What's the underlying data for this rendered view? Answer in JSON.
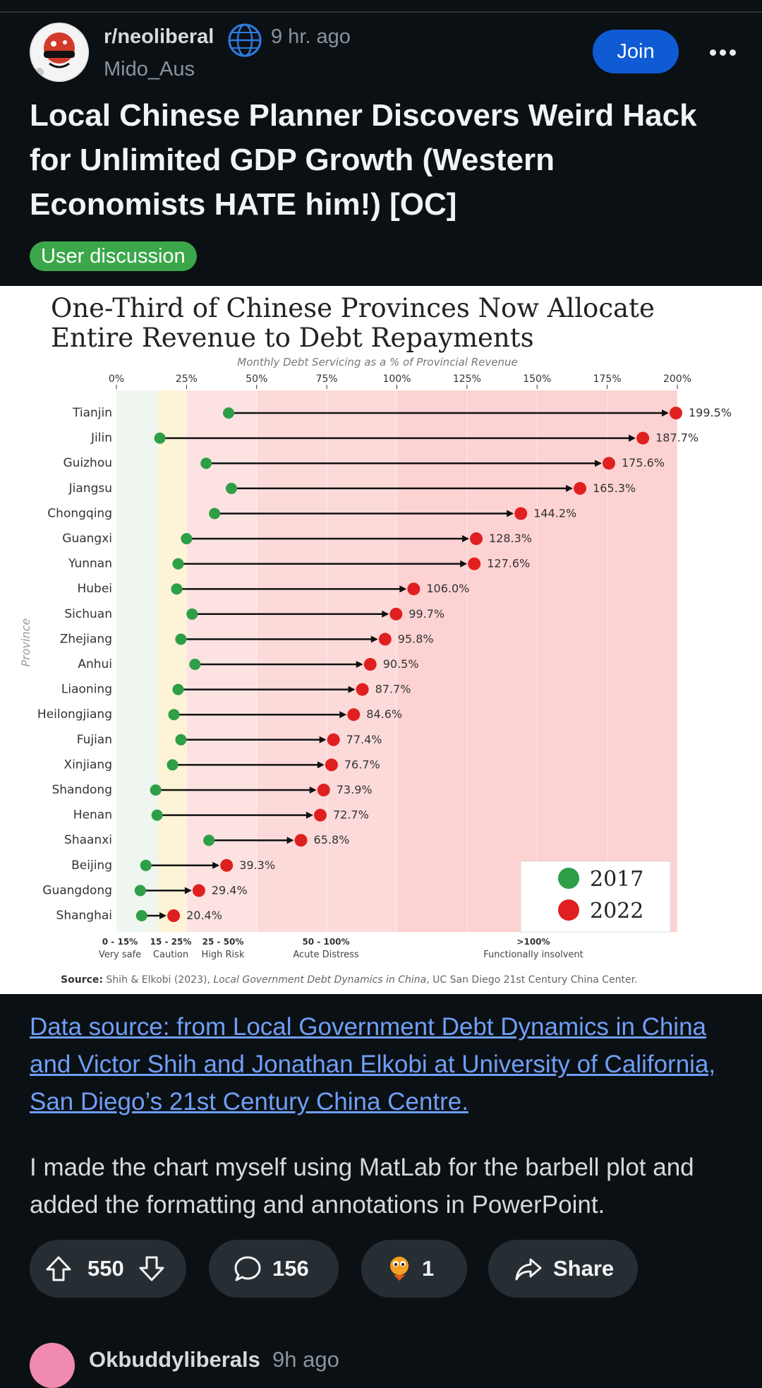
{
  "post": {
    "subreddit": "r/neoliberal",
    "time": "9 hr. ago",
    "author": "Mido_Aus",
    "join_label": "Join",
    "title": "Local Chinese Planner Discovers Weird Hack for Unlimited GDP Growth (Western Economists HATE him!) [OC]",
    "flair": "User discussion",
    "link_text": "Data source: from Local Government Debt Dynamics in China and Victor Shih and Jonathan Elkobi at University of California, San Diego’s 21st Century China Centre.",
    "body": "I made the chart myself using MatLab for the barbell plot and added the formatting and  annotations in PowerPoint."
  },
  "actions": {
    "upvotes": "550",
    "comments": "156",
    "awards": "1",
    "share_label": "Share"
  },
  "next_comment": {
    "user": "Okbuddyliberals",
    "time": "9h ago"
  },
  "colors": {
    "join": "#0f5bd4",
    "flair": "#3ba74a",
    "link": "#6f9ff6",
    "dot_2017": "#2e9e47",
    "dot_2022": "#e02020"
  },
  "chart_data": {
    "type": "barbell",
    "title_line1": "One-Third of Chinese Provinces Now Allocate",
    "title_line2": "Entire Revenue to Debt Repayments",
    "subtitle": "Monthly Debt Servicing as a % of Provincial Revenue",
    "ylabel": "Province",
    "x_ticks": [
      "0%",
      "25%",
      "50%",
      "75%",
      "100%",
      "125%",
      "150%",
      "175%",
      "200%"
    ],
    "xlim": [
      0,
      200
    ],
    "legend": [
      "2017",
      "2022"
    ],
    "legend_position": "bottom-right",
    "zones": [
      {
        "range": "0 - 15%",
        "label": "Very safe",
        "from": 0,
        "to": 15,
        "color": "#eef6ef"
      },
      {
        "range": "15 - 25%",
        "label": "Caution",
        "from": 15,
        "to": 25,
        "color": "#fdf3d6"
      },
      {
        "range": "25 - 50%",
        "label": "High Risk",
        "from": 25,
        "to": 50,
        "color": "#fde2e2"
      },
      {
        "range": "50 - 100%",
        "label": "Acute Distress",
        "from": 50,
        "to": 100,
        "color": "#fddada"
      },
      {
        "range": ">100%",
        "label": "Functionally insolvent",
        "from": 100,
        "to": 200,
        "color": "#fdd2d2"
      }
    ],
    "source_prefix": "Source:",
    "source_text": "Shih & Elkobi (2023),",
    "source_italic": "Local Government Debt Dynamics in China",
    "source_suffix": ", UC San Diego 21st Century China Center.",
    "provinces": [
      {
        "name": "Tianjin",
        "v2017": 40,
        "v2022": 199.5,
        "label": "199.5%"
      },
      {
        "name": "Jilin",
        "v2017": 15.5,
        "v2022": 187.7,
        "label": "187.7%"
      },
      {
        "name": "Guizhou",
        "v2017": 32,
        "v2022": 175.6,
        "label": "175.6%"
      },
      {
        "name": "Jiangsu",
        "v2017": 41,
        "v2022": 165.3,
        "label": "165.3%"
      },
      {
        "name": "Chongqing",
        "v2017": 35,
        "v2022": 144.2,
        "label": "144.2%"
      },
      {
        "name": "Guangxi",
        "v2017": 25,
        "v2022": 128.3,
        "label": "128.3%"
      },
      {
        "name": "Yunnan",
        "v2017": 22,
        "v2022": 127.6,
        "label": "127.6%"
      },
      {
        "name": "Hubei",
        "v2017": 21.5,
        "v2022": 106.0,
        "label": "106.0%"
      },
      {
        "name": "Sichuan",
        "v2017": 27,
        "v2022": 99.7,
        "label": "99.7%"
      },
      {
        "name": "Zhejiang",
        "v2017": 23,
        "v2022": 95.8,
        "label": "95.8%"
      },
      {
        "name": "Anhui",
        "v2017": 28,
        "v2022": 90.5,
        "label": "90.5%"
      },
      {
        "name": "Liaoning",
        "v2017": 22,
        "v2022": 87.7,
        "label": "87.7%"
      },
      {
        "name": "Heilongjiang",
        "v2017": 20.5,
        "v2022": 84.6,
        "label": "84.6%"
      },
      {
        "name": "Fujian",
        "v2017": 23,
        "v2022": 77.4,
        "label": "77.4%"
      },
      {
        "name": "Xinjiang",
        "v2017": 20,
        "v2022": 76.7,
        "label": "76.7%"
      },
      {
        "name": "Shandong",
        "v2017": 14,
        "v2022": 73.9,
        "label": "73.9%"
      },
      {
        "name": "Henan",
        "v2017": 14.5,
        "v2022": 72.7,
        "label": "72.7%"
      },
      {
        "name": "Shaanxi",
        "v2017": 33,
        "v2022": 65.8,
        "label": "65.8%"
      },
      {
        "name": "Beijing",
        "v2017": 10.5,
        "v2022": 39.3,
        "label": "39.3%"
      },
      {
        "name": "Guangdong",
        "v2017": 8.5,
        "v2022": 29.4,
        "label": "29.4%"
      },
      {
        "name": "Shanghai",
        "v2017": 9,
        "v2022": 20.4,
        "label": "20.4%"
      }
    ]
  }
}
